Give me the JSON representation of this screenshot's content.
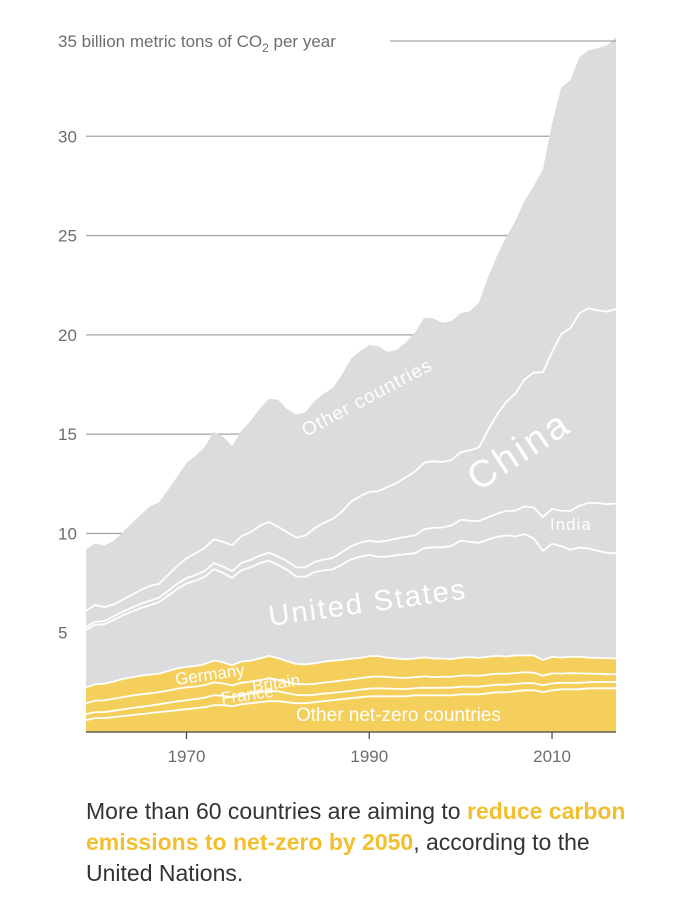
{
  "chart_data": {
    "type": "area",
    "title": "",
    "ylabel": "billion metric tons of CO2 per year",
    "ylabel_parts": {
      "number": "35",
      "prefix": " billion metric tons of CO",
      "subscript": "2",
      "suffix": " per year"
    },
    "yticks": [
      35,
      30,
      25,
      20,
      15,
      10,
      5
    ],
    "xticks": [
      1970,
      1990,
      2010
    ],
    "xlim": [
      1959,
      2017
    ],
    "ylim": [
      0,
      35
    ],
    "stacked": true,
    "x": [
      1959,
      1960,
      1961,
      1962,
      1963,
      1964,
      1965,
      1966,
      1967,
      1968,
      1969,
      1970,
      1971,
      1972,
      1973,
      1974,
      1975,
      1976,
      1977,
      1978,
      1979,
      1980,
      1981,
      1982,
      1983,
      1984,
      1985,
      1986,
      1987,
      1988,
      1989,
      1990,
      1991,
      1992,
      1993,
      1994,
      1995,
      1996,
      1997,
      1998,
      1999,
      2000,
      2001,
      2002,
      2003,
      2004,
      2005,
      2006,
      2007,
      2008,
      2009,
      2010,
      2011,
      2012,
      2013,
      2014,
      2015,
      2016,
      2017
    ],
    "series": [
      {
        "name": "Other net-zero countries",
        "color": "#f5cf5c",
        "values": [
          0.6,
          0.7,
          0.7,
          0.75,
          0.8,
          0.85,
          0.9,
          0.95,
          1.0,
          1.05,
          1.1,
          1.15,
          1.2,
          1.25,
          1.35,
          1.35,
          1.3,
          1.4,
          1.45,
          1.5,
          1.55,
          1.55,
          1.5,
          1.45,
          1.45,
          1.5,
          1.55,
          1.6,
          1.65,
          1.7,
          1.75,
          1.8,
          1.8,
          1.8,
          1.8,
          1.8,
          1.85,
          1.85,
          1.85,
          1.85,
          1.85,
          1.9,
          1.9,
          1.9,
          1.95,
          2.0,
          2.0,
          2.05,
          2.1,
          2.1,
          2.0,
          2.1,
          2.15,
          2.15,
          2.15,
          2.2,
          2.2,
          2.2,
          2.2
        ]
      },
      {
        "name": "France",
        "color": "#f5cf5c",
        "values": [
          0.3,
          0.3,
          0.3,
          0.32,
          0.34,
          0.36,
          0.37,
          0.38,
          0.4,
          0.42,
          0.44,
          0.45,
          0.46,
          0.48,
          0.5,
          0.48,
          0.45,
          0.48,
          0.48,
          0.5,
          0.52,
          0.5,
          0.46,
          0.42,
          0.4,
          0.38,
          0.38,
          0.37,
          0.37,
          0.37,
          0.38,
          0.38,
          0.4,
          0.39,
          0.37,
          0.36,
          0.36,
          0.38,
          0.37,
          0.38,
          0.38,
          0.38,
          0.38,
          0.38,
          0.38,
          0.38,
          0.38,
          0.37,
          0.36,
          0.36,
          0.35,
          0.35,
          0.33,
          0.33,
          0.33,
          0.31,
          0.32,
          0.32,
          0.32
        ]
      },
      {
        "name": "Britain",
        "color": "#f5cf5c",
        "values": [
          0.55,
          0.58,
          0.59,
          0.6,
          0.62,
          0.62,
          0.63,
          0.62,
          0.61,
          0.62,
          0.64,
          0.65,
          0.63,
          0.63,
          0.65,
          0.62,
          0.59,
          0.6,
          0.61,
          0.61,
          0.63,
          0.58,
          0.56,
          0.55,
          0.55,
          0.54,
          0.56,
          0.57,
          0.57,
          0.58,
          0.58,
          0.59,
          0.6,
          0.58,
          0.57,
          0.56,
          0.55,
          0.57,
          0.55,
          0.55,
          0.55,
          0.56,
          0.57,
          0.55,
          0.56,
          0.56,
          0.55,
          0.55,
          0.55,
          0.53,
          0.48,
          0.5,
          0.46,
          0.48,
          0.47,
          0.43,
          0.41,
          0.39,
          0.38
        ]
      },
      {
        "name": "Germany",
        "color": "#f5cf5c",
        "values": [
          0.8,
          0.82,
          0.84,
          0.87,
          0.91,
          0.93,
          0.94,
          0.94,
          0.93,
          0.98,
          1.03,
          1.03,
          1.04,
          1.06,
          1.1,
          1.06,
          1.02,
          1.07,
          1.05,
          1.09,
          1.13,
          1.09,
          1.05,
          1.01,
          1.01,
          1.04,
          1.05,
          1.05,
          1.04,
          1.04,
          1.02,
          1.05,
          1.02,
          0.97,
          0.96,
          0.94,
          0.94,
          0.96,
          0.93,
          0.92,
          0.89,
          0.9,
          0.92,
          0.9,
          0.9,
          0.89,
          0.87,
          0.88,
          0.85,
          0.86,
          0.79,
          0.83,
          0.81,
          0.82,
          0.84,
          0.8,
          0.8,
          0.81,
          0.8
        ]
      },
      {
        "name": "United States",
        "color": "#dcdcdf",
        "values": [
          2.9,
          3.0,
          3.0,
          3.1,
          3.2,
          3.3,
          3.4,
          3.5,
          3.6,
          3.8,
          4.0,
          4.2,
          4.3,
          4.4,
          4.6,
          4.5,
          4.4,
          4.6,
          4.7,
          4.8,
          4.8,
          4.7,
          4.6,
          4.4,
          4.4,
          4.6,
          4.6,
          4.6,
          4.8,
          5.0,
          5.1,
          5.1,
          5.0,
          5.1,
          5.2,
          5.3,
          5.3,
          5.5,
          5.6,
          5.6,
          5.7,
          5.9,
          5.8,
          5.8,
          5.9,
          6.0,
          6.1,
          6.0,
          6.1,
          5.9,
          5.5,
          5.7,
          5.6,
          5.4,
          5.5,
          5.5,
          5.4,
          5.3,
          5.3
        ]
      },
      {
        "name": "India",
        "color": "#dcdcdf",
        "values": [
          0.15,
          0.15,
          0.16,
          0.18,
          0.19,
          0.2,
          0.21,
          0.22,
          0.23,
          0.24,
          0.26,
          0.27,
          0.28,
          0.3,
          0.31,
          0.32,
          0.34,
          0.36,
          0.37,
          0.38,
          0.4,
          0.42,
          0.44,
          0.46,
          0.48,
          0.5,
          0.54,
          0.58,
          0.62,
          0.66,
          0.7,
          0.72,
          0.76,
          0.8,
          0.84,
          0.87,
          0.91,
          0.95,
          0.98,
          1.0,
          1.03,
          1.05,
          1.07,
          1.09,
          1.12,
          1.17,
          1.23,
          1.3,
          1.4,
          1.55,
          1.7,
          1.75,
          1.8,
          1.95,
          2.1,
          2.3,
          2.4,
          2.45,
          2.5
        ]
      },
      {
        "name": "China",
        "color": "#dcdcdf",
        "values": [
          0.8,
          0.85,
          0.7,
          0.6,
          0.6,
          0.65,
          0.7,
          0.75,
          0.7,
          0.8,
          0.9,
          1.0,
          1.1,
          1.15,
          1.2,
          1.25,
          1.3,
          1.35,
          1.4,
          1.5,
          1.55,
          1.5,
          1.45,
          1.5,
          1.6,
          1.7,
          1.85,
          1.95,
          2.05,
          2.25,
          2.35,
          2.45,
          2.55,
          2.7,
          2.8,
          3.0,
          3.2,
          3.35,
          3.35,
          3.3,
          3.3,
          3.4,
          3.55,
          3.7,
          4.4,
          5.0,
          5.5,
          5.9,
          6.4,
          6.8,
          7.3,
          7.9,
          8.9,
          9.2,
          9.7,
          9.8,
          9.7,
          9.7,
          9.8
        ]
      },
      {
        "name": "Other countries",
        "color": "#dcdcdf",
        "values": [
          3.1,
          3.1,
          3.1,
          3.2,
          3.4,
          3.6,
          3.8,
          4.0,
          4.1,
          4.3,
          4.5,
          4.8,
          4.9,
          5.1,
          5.4,
          5.3,
          5.0,
          5.3,
          5.6,
          5.9,
          6.2,
          6.4,
          6.2,
          6.2,
          6.2,
          6.4,
          6.5,
          6.6,
          6.9,
          7.2,
          7.3,
          7.4,
          7.3,
          6.8,
          6.7,
          6.8,
          7.0,
          7.3,
          7.2,
          7.0,
          7.0,
          7.0,
          7.0,
          7.3,
          7.7,
          8.0,
          8.3,
          8.7,
          9.0,
          9.4,
          10.2,
          11.5,
          12.4,
          12.5,
          12.9,
          13.0,
          13.2,
          13.4,
          13.7
        ]
      }
    ],
    "area_labels": [
      "Other countries",
      "China",
      "India",
      "United States",
      "Germany",
      "Britain",
      "France",
      "Other net-zero countries"
    ]
  },
  "caption": {
    "before": "More than 60 countries are aiming to ",
    "highlight": "reduce carbon emissions to net-zero by 2050",
    "after": ", according to the United Nations."
  }
}
